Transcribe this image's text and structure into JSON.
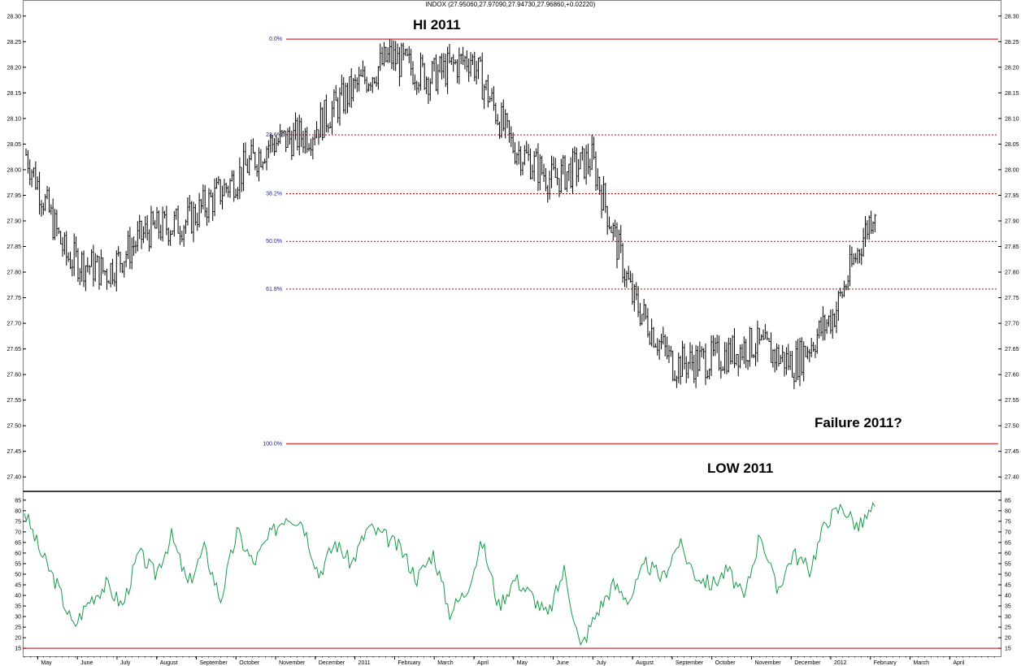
{
  "header": {
    "quote": "INDOX (27.95060,27.97090,27.94730,27.96860,+0.02220)"
  },
  "annotations": {
    "hi": "HI 2011",
    "low": "LOW 2011",
    "failure": "Failure 2011?"
  },
  "colors": {
    "price": "#000000",
    "fib": "#cc0000",
    "oscillator": "#1a9a4a",
    "fib_label": "#1a1aa0",
    "frame": "#808080"
  },
  "chart_data": [
    {
      "type": "line",
      "subtype": "ohlc_bars",
      "ylim": [
        27.375,
        28.325
      ],
      "y_ticks": [
        "27.40",
        "27.45",
        "27.50",
        "27.55",
        "27.60",
        "27.65",
        "27.70",
        "27.75",
        "27.80",
        "27.85",
        "27.90",
        "27.95",
        "28.00",
        "28.05",
        "28.10",
        "28.15",
        "28.20",
        "28.25",
        "28.30"
      ],
      "x_ticks": [
        "May",
        "June",
        "July",
        "August",
        "September",
        "October",
        "November",
        "December",
        "2011",
        "February",
        "March",
        "April",
        "May",
        "June",
        "July",
        "August",
        "September",
        "October",
        "November",
        "December",
        "2012",
        "February",
        "March",
        "April"
      ],
      "x": [
        "May",
        "June",
        "July",
        "August",
        "September",
        "October",
        "November",
        "December",
        "2011",
        "February",
        "March",
        "April",
        "May",
        "June",
        "July",
        "August",
        "September",
        "October",
        "November",
        "December",
        "2012",
        "February"
      ],
      "series": [
        {
          "values": [
            28.03,
            27.83,
            27.8,
            27.88,
            27.9,
            27.97,
            28.05,
            28.07,
            28.15,
            28.22,
            28.18,
            28.22,
            28.05,
            27.98,
            28.02,
            27.75,
            27.62,
            27.63,
            27.66,
            27.62,
            27.72,
            27.93
          ]
        }
      ],
      "fib_levels": [
        {
          "label": "0.0%",
          "value": 28.255
        },
        {
          "label": "23.6%",
          "value": 28.068
        },
        {
          "label": "38.2%",
          "value": 27.953
        },
        {
          "label": "50.0%",
          "value": 27.86
        },
        {
          "label": "61.8%",
          "value": 27.767
        },
        {
          "label": "100.0%",
          "value": 27.465
        }
      ]
    },
    {
      "type": "line",
      "ylim": [
        12,
        88
      ],
      "y_ticks": [
        "15",
        "20",
        "25",
        "30",
        "35",
        "40",
        "45",
        "50",
        "55",
        "60",
        "65",
        "70",
        "75",
        "80",
        "85"
      ],
      "baseline": 15,
      "series": [
        {
          "values": [
            80,
            60,
            45,
            25,
            38,
            45,
            35,
            60,
            50,
            68,
            45,
            62,
            38,
            70,
            55,
            68,
            78,
            75,
            50,
            65,
            55,
            72,
            68,
            62,
            48,
            60,
            32,
            42,
            65,
            35,
            48,
            40,
            30,
            52,
            15,
            32,
            45,
            38,
            55,
            48,
            65,
            50,
            45,
            52,
            38,
            70,
            42,
            60,
            52,
            75,
            82,
            72,
            82
          ]
        }
      ]
    }
  ]
}
